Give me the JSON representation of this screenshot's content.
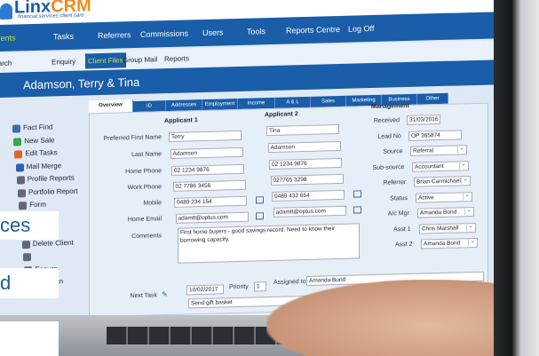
{
  "brand": {
    "name_a": "Linx",
    "name_b": "CRM",
    "tagline": "financial services client care"
  },
  "nav": [
    {
      "label": "Clients",
      "active": true
    },
    {
      "label": "Tasks"
    },
    {
      "label": "Referrers"
    },
    {
      "label": "Commissions"
    },
    {
      "label": "Users"
    },
    {
      "label": "Tools"
    },
    {
      "label": "Reports Centre"
    },
    {
      "label": "Log Off"
    }
  ],
  "subnav": [
    {
      "label": "Search"
    },
    {
      "label": "Enquiry"
    },
    {
      "label": "Client Files",
      "active": true
    },
    {
      "label": "Group Mail"
    },
    {
      "label": "Reports"
    }
  ],
  "client_title": "Adamson, Terry & Tina",
  "sidebar": [
    "Fact Find",
    "New Sale",
    "Edit Tasks",
    "Mail Merge",
    "Profile Reports",
    "Portfolio Report",
    "Form",
    "",
    "Client",
    "Delete Client",
    "",
    "Ensure",
    "LinxPlan"
  ],
  "tabs": [
    "Overview",
    "ID",
    "Addresses",
    "Employment",
    "Income",
    "A & L",
    "Sales",
    "Marketing",
    "Business",
    "Other"
  ],
  "form": {
    "applicant1_header": "Applicant 1",
    "applicant2_header": "Applicant 2",
    "labels": [
      "Preferred First Name",
      "Last Name",
      "Home Phone",
      "Work Phone",
      "Mobile",
      "Home Email",
      "Comments"
    ],
    "applicant1": [
      "Terry",
      "Adamson",
      "02 1234 9876",
      "02 7786 3456",
      "0489 234 164",
      "adamtt@optus.com"
    ],
    "applicant2": [
      "Tina",
      "Adamson",
      "02 1234 9876",
      "027765 3298",
      "0489 432 654",
      "adamtt@optus.com"
    ],
    "comments": "First home buyers - good savings record. Need to know their borrowing capacity."
  },
  "management": {
    "header": "Management",
    "fields": [
      {
        "label": "Received",
        "value": "31/03/2016"
      },
      {
        "label": "Lead No",
        "value": "OP 365874"
      },
      {
        "label": "Source",
        "value": "Referral",
        "select": true
      },
      {
        "label": "Sub-source",
        "value": "Accountant",
        "select": true
      },
      {
        "label": "Referrer",
        "value": "Brian Carmichael",
        "select": true
      },
      {
        "label": "Status",
        "value": "Active",
        "select": true
      },
      {
        "label": "A/c Mgr",
        "value": "Amanda Bond",
        "select": true
      },
      {
        "label": "Asst 1",
        "value": "Chris Marshall",
        "select": true
      },
      {
        "label": "Asst 2",
        "value": "Amanda Bond",
        "select": true
      }
    ]
  },
  "next_task": {
    "label": "Next Task",
    "date": "10/02/2017",
    "priority_label": "Priority",
    "priority": "1",
    "assigned_label": "Assigned to",
    "assigned": "Amanda Bond",
    "description": "Send gift basket"
  },
  "overlays": [
    "ces",
    "d",
    ""
  ],
  "colors": {
    "nav_blue": "#1a5da8",
    "active_green": "#c6e34b",
    "brand_orange": "#f28c1c"
  }
}
